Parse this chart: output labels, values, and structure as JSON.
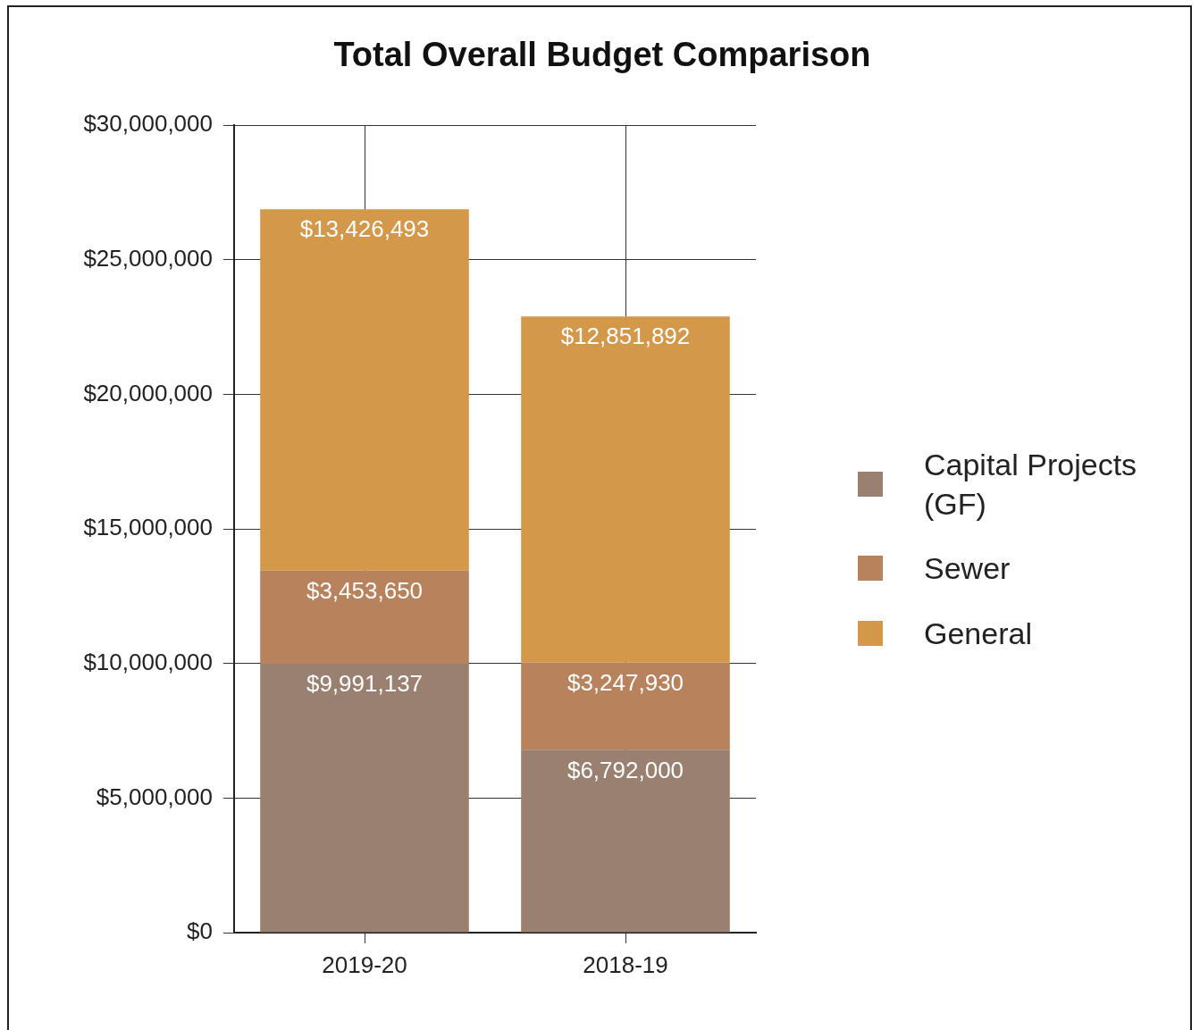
{
  "chart_data": {
    "type": "bar",
    "title": "Total Overall Budget Comparison",
    "categories": [
      "2019-20",
      "2018-19"
    ],
    "stacked": true,
    "series": [
      {
        "name": "Capital Projects (GF)",
        "color": "#998070",
        "values": [
          9991137,
          6792000
        ],
        "value_labels": [
          "$9,991,137",
          "$6,792,000"
        ]
      },
      {
        "name": "Sewer",
        "color": "#b8825c",
        "values": [
          3453650,
          3247930
        ],
        "value_labels": [
          "$3,453,650",
          "$3,247,930"
        ]
      },
      {
        "name": "General",
        "color": "#d4984a",
        "values": [
          13426493,
          12851892
        ],
        "value_labels": [
          "$13,426,493",
          "$12,851,892"
        ]
      }
    ],
    "ylim": [
      0,
      30000000
    ],
    "yticks": [
      {
        "value": 0,
        "label": "$0"
      },
      {
        "value": 5000000,
        "label": "$5,000,000"
      },
      {
        "value": 10000000,
        "label": "$10,000,000"
      },
      {
        "value": 15000000,
        "label": "$15,000,000"
      },
      {
        "value": 20000000,
        "label": "$20,000,000"
      },
      {
        "value": 25000000,
        "label": "$25,000,000"
      },
      {
        "value": 30000000,
        "label": "$30,000,000"
      }
    ],
    "grid": true,
    "legend": "right"
  }
}
